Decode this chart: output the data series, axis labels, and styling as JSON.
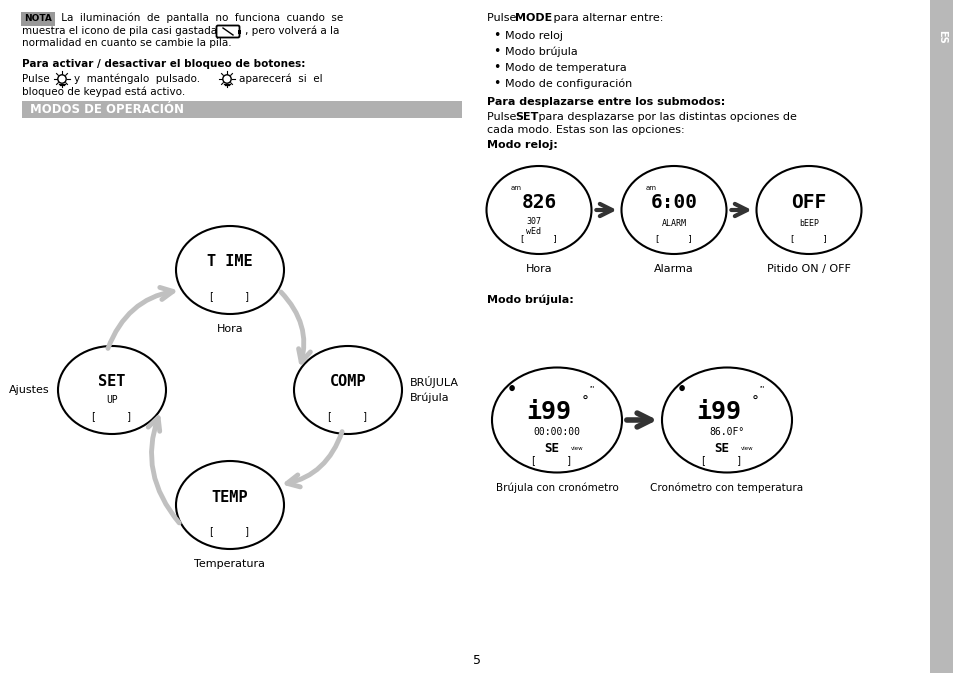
{
  "bg_color": "#ffffff",
  "page_number": "5",
  "sidebar_color": "#b8b8b8",
  "sidebar_text": "ES",
  "header_bar_color": "#b0b0b0",
  "header_bar_text": "MODOS DE OPERACIÓN",
  "nota_bg": "#999999",
  "nota_label": "NOTA",
  "arrow_color": "#c0c0c0",
  "arrow_color_dark": "#333333"
}
